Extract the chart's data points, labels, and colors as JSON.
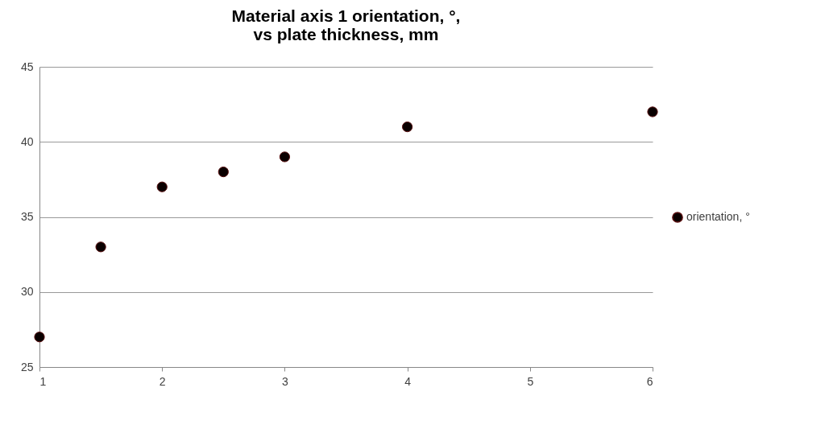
{
  "chart_data": {
    "type": "scatter",
    "title": "Material axis 1 orientation, °,\nvs plate thickness, mm",
    "x": [
      1,
      1.5,
      2,
      2.5,
      3,
      4,
      6
    ],
    "series": [
      {
        "name": "orientation, °",
        "color": "#0a0000",
        "values": [
          27,
          33,
          37,
          38,
          39,
          41,
          42
        ]
      }
    ],
    "xlim": [
      1,
      6
    ],
    "xticks": [
      1,
      2,
      3,
      4,
      5,
      6
    ],
    "ylim": [
      25,
      45
    ],
    "yticks": [
      25,
      30,
      35,
      40,
      45
    ],
    "grid": "y",
    "legend": "right",
    "marker": "circle"
  }
}
